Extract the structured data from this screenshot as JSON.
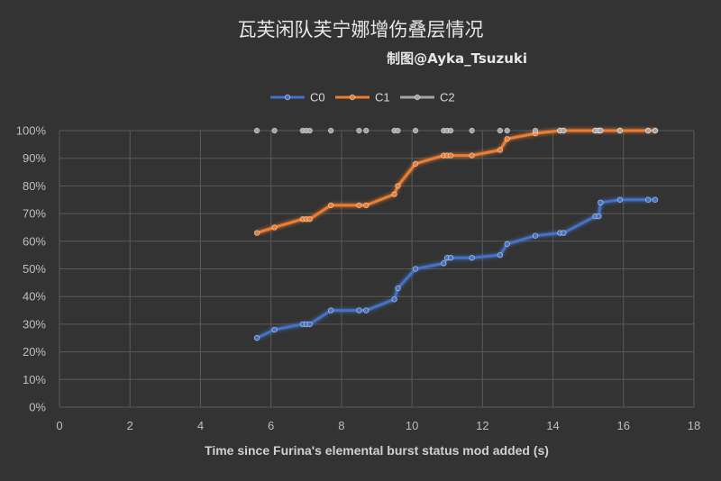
{
  "chart_data": {
    "type": "line",
    "title": "瓦芙闲队芙宁娜增伤叠层情况",
    "subtitle": "制图@Ayka_Tsuzuki",
    "xlabel": "Time since Furina's elemental burst status mod added (s)",
    "ylabel": "",
    "xlim": [
      0,
      18
    ],
    "ylim": [
      0,
      100
    ],
    "x_ticks": [
      "0",
      "2",
      "4",
      "6",
      "8",
      "10",
      "12",
      "14",
      "16",
      "18"
    ],
    "y_ticks": [
      "0%",
      "10%",
      "20%",
      "30%",
      "40%",
      "50%",
      "60%",
      "70%",
      "80%",
      "90%",
      "100%"
    ],
    "grid": true,
    "legend_position": "top",
    "series": [
      {
        "name": "C0",
        "color": "#4472c4",
        "points": [
          [
            5.6,
            25
          ],
          [
            6.1,
            28
          ],
          [
            6.9,
            30
          ],
          [
            7.0,
            30
          ],
          [
            7.1,
            30
          ],
          [
            7.7,
            35
          ],
          [
            8.5,
            35
          ],
          [
            8.7,
            35
          ],
          [
            9.5,
            39
          ],
          [
            9.6,
            43
          ],
          [
            10.1,
            50
          ],
          [
            10.9,
            52
          ],
          [
            11.0,
            54
          ],
          [
            11.1,
            54
          ],
          [
            11.7,
            54
          ],
          [
            12.5,
            55
          ],
          [
            12.7,
            59
          ],
          [
            13.5,
            62
          ],
          [
            14.2,
            63
          ],
          [
            14.3,
            63
          ],
          [
            15.2,
            69
          ],
          [
            15.3,
            69
          ],
          [
            15.35,
            74
          ],
          [
            15.9,
            75
          ],
          [
            16.7,
            75
          ],
          [
            16.9,
            75
          ]
        ]
      },
      {
        "name": "C1",
        "color": "#ed7d31",
        "points": [
          [
            5.6,
            63
          ],
          [
            6.1,
            65
          ],
          [
            6.9,
            68
          ],
          [
            7.0,
            68
          ],
          [
            7.1,
            68
          ],
          [
            7.7,
            73
          ],
          [
            8.5,
            73
          ],
          [
            8.7,
            73
          ],
          [
            9.5,
            77
          ],
          [
            9.6,
            80
          ],
          [
            10.1,
            88
          ],
          [
            10.9,
            91
          ],
          [
            11.0,
            91
          ],
          [
            11.1,
            91
          ],
          [
            11.7,
            91
          ],
          [
            12.5,
            93
          ],
          [
            12.7,
            97
          ],
          [
            13.5,
            99
          ],
          [
            14.2,
            100
          ],
          [
            14.3,
            100
          ],
          [
            15.2,
            100
          ],
          [
            15.3,
            100
          ],
          [
            15.35,
            100
          ],
          [
            15.9,
            100
          ],
          [
            16.7,
            100
          ],
          [
            16.9,
            100
          ]
        ]
      },
      {
        "name": "C2",
        "color": "#a5a5a5",
        "points": [
          [
            5.6,
            100
          ],
          [
            6.1,
            100
          ],
          [
            6.9,
            100
          ],
          [
            7.0,
            100
          ],
          [
            7.1,
            100
          ],
          [
            7.7,
            100
          ],
          [
            8.5,
            100
          ],
          [
            8.7,
            100
          ],
          [
            9.5,
            100
          ],
          [
            9.6,
            100
          ],
          [
            10.1,
            100
          ],
          [
            10.9,
            100
          ],
          [
            11.0,
            100
          ],
          [
            11.1,
            100
          ],
          [
            11.7,
            100
          ],
          [
            12.5,
            100
          ],
          [
            12.7,
            100
          ],
          [
            13.5,
            100
          ],
          [
            14.2,
            100
          ],
          [
            14.3,
            100
          ],
          [
            15.2,
            100
          ],
          [
            15.3,
            100
          ],
          [
            15.35,
            100
          ],
          [
            15.9,
            100
          ],
          [
            16.7,
            100
          ],
          [
            16.9,
            100
          ]
        ]
      }
    ]
  }
}
